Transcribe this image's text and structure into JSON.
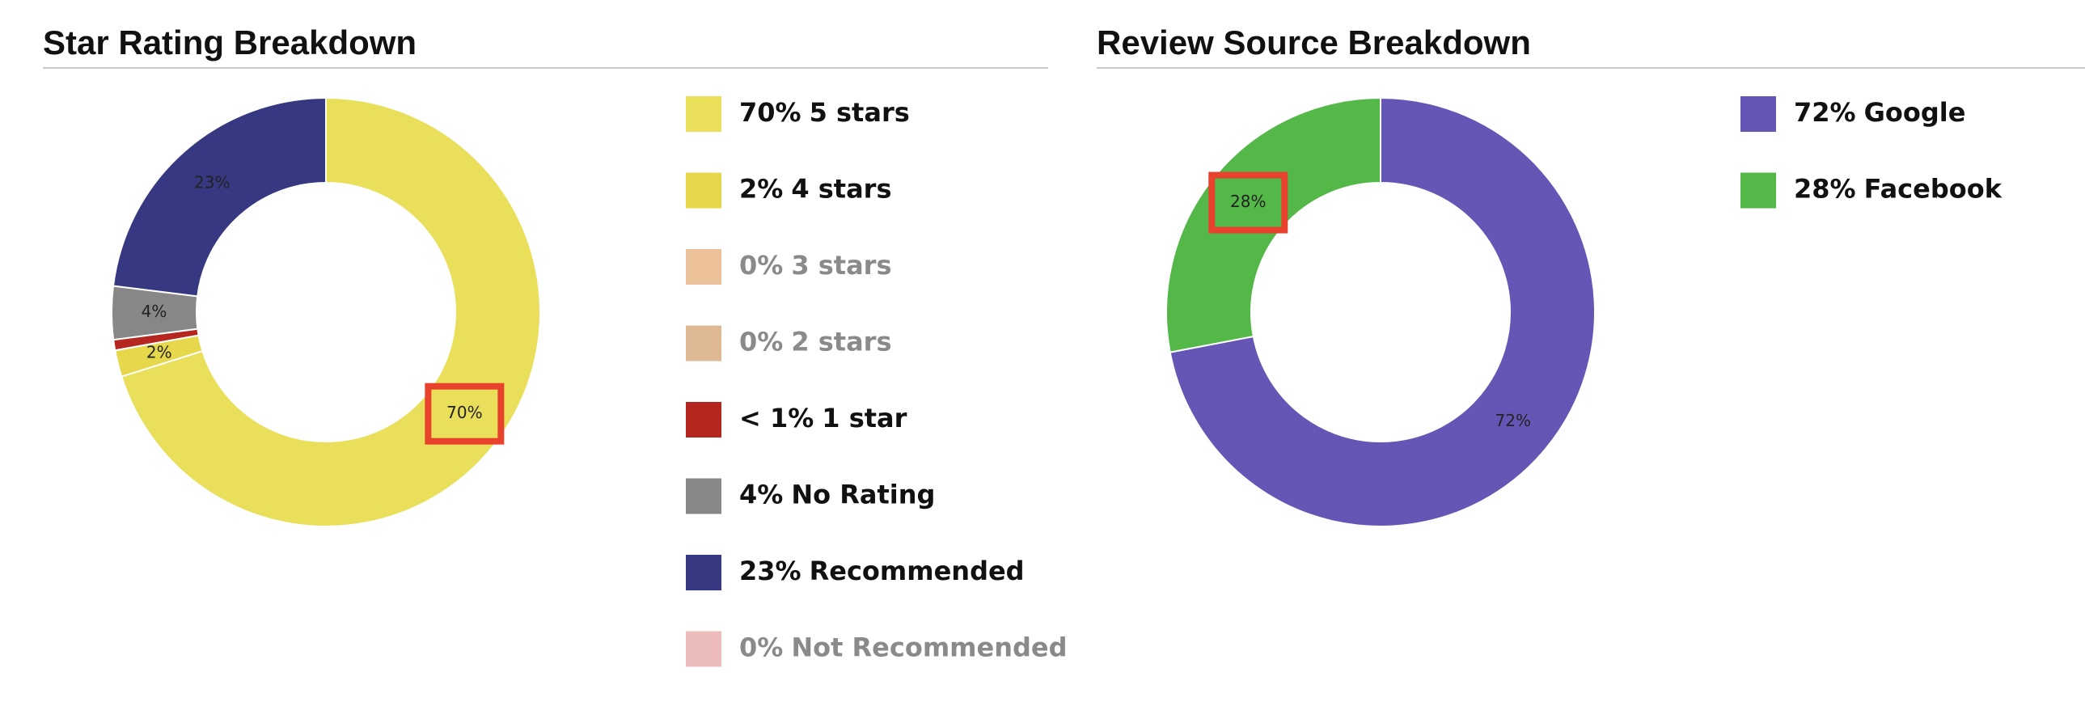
{
  "chart_data": [
    {
      "type": "donut",
      "title": "Star Rating Breakdown",
      "categories": [
        "5 stars",
        "4 stars",
        "3 stars",
        "2 stars",
        "1 star",
        "No Rating",
        "Recommended",
        "Not Recommended"
      ],
      "values": [
        70,
        2,
        0,
        0,
        0.8,
        4,
        23,
        0
      ],
      "value_labels": [
        "70%",
        "2%",
        "0%",
        "0%",
        "< 1%",
        "4%",
        "23%",
        "0%"
      ],
      "colors": [
        "#e9df5b",
        "#e6d84a",
        "#ecc199",
        "#dfb894",
        "#b5261e",
        "#878787",
        "#363882",
        "#ecbcbc"
      ],
      "highlight_index": 0
    },
    {
      "type": "donut",
      "title": "Review Source Breakdown",
      "categories": [
        "Google",
        "Facebook"
      ],
      "values": [
        72,
        28
      ],
      "value_labels": [
        "72%",
        "28%"
      ],
      "colors": [
        "#6555b5",
        "#54b848"
      ],
      "highlight_index": 1
    }
  ]
}
